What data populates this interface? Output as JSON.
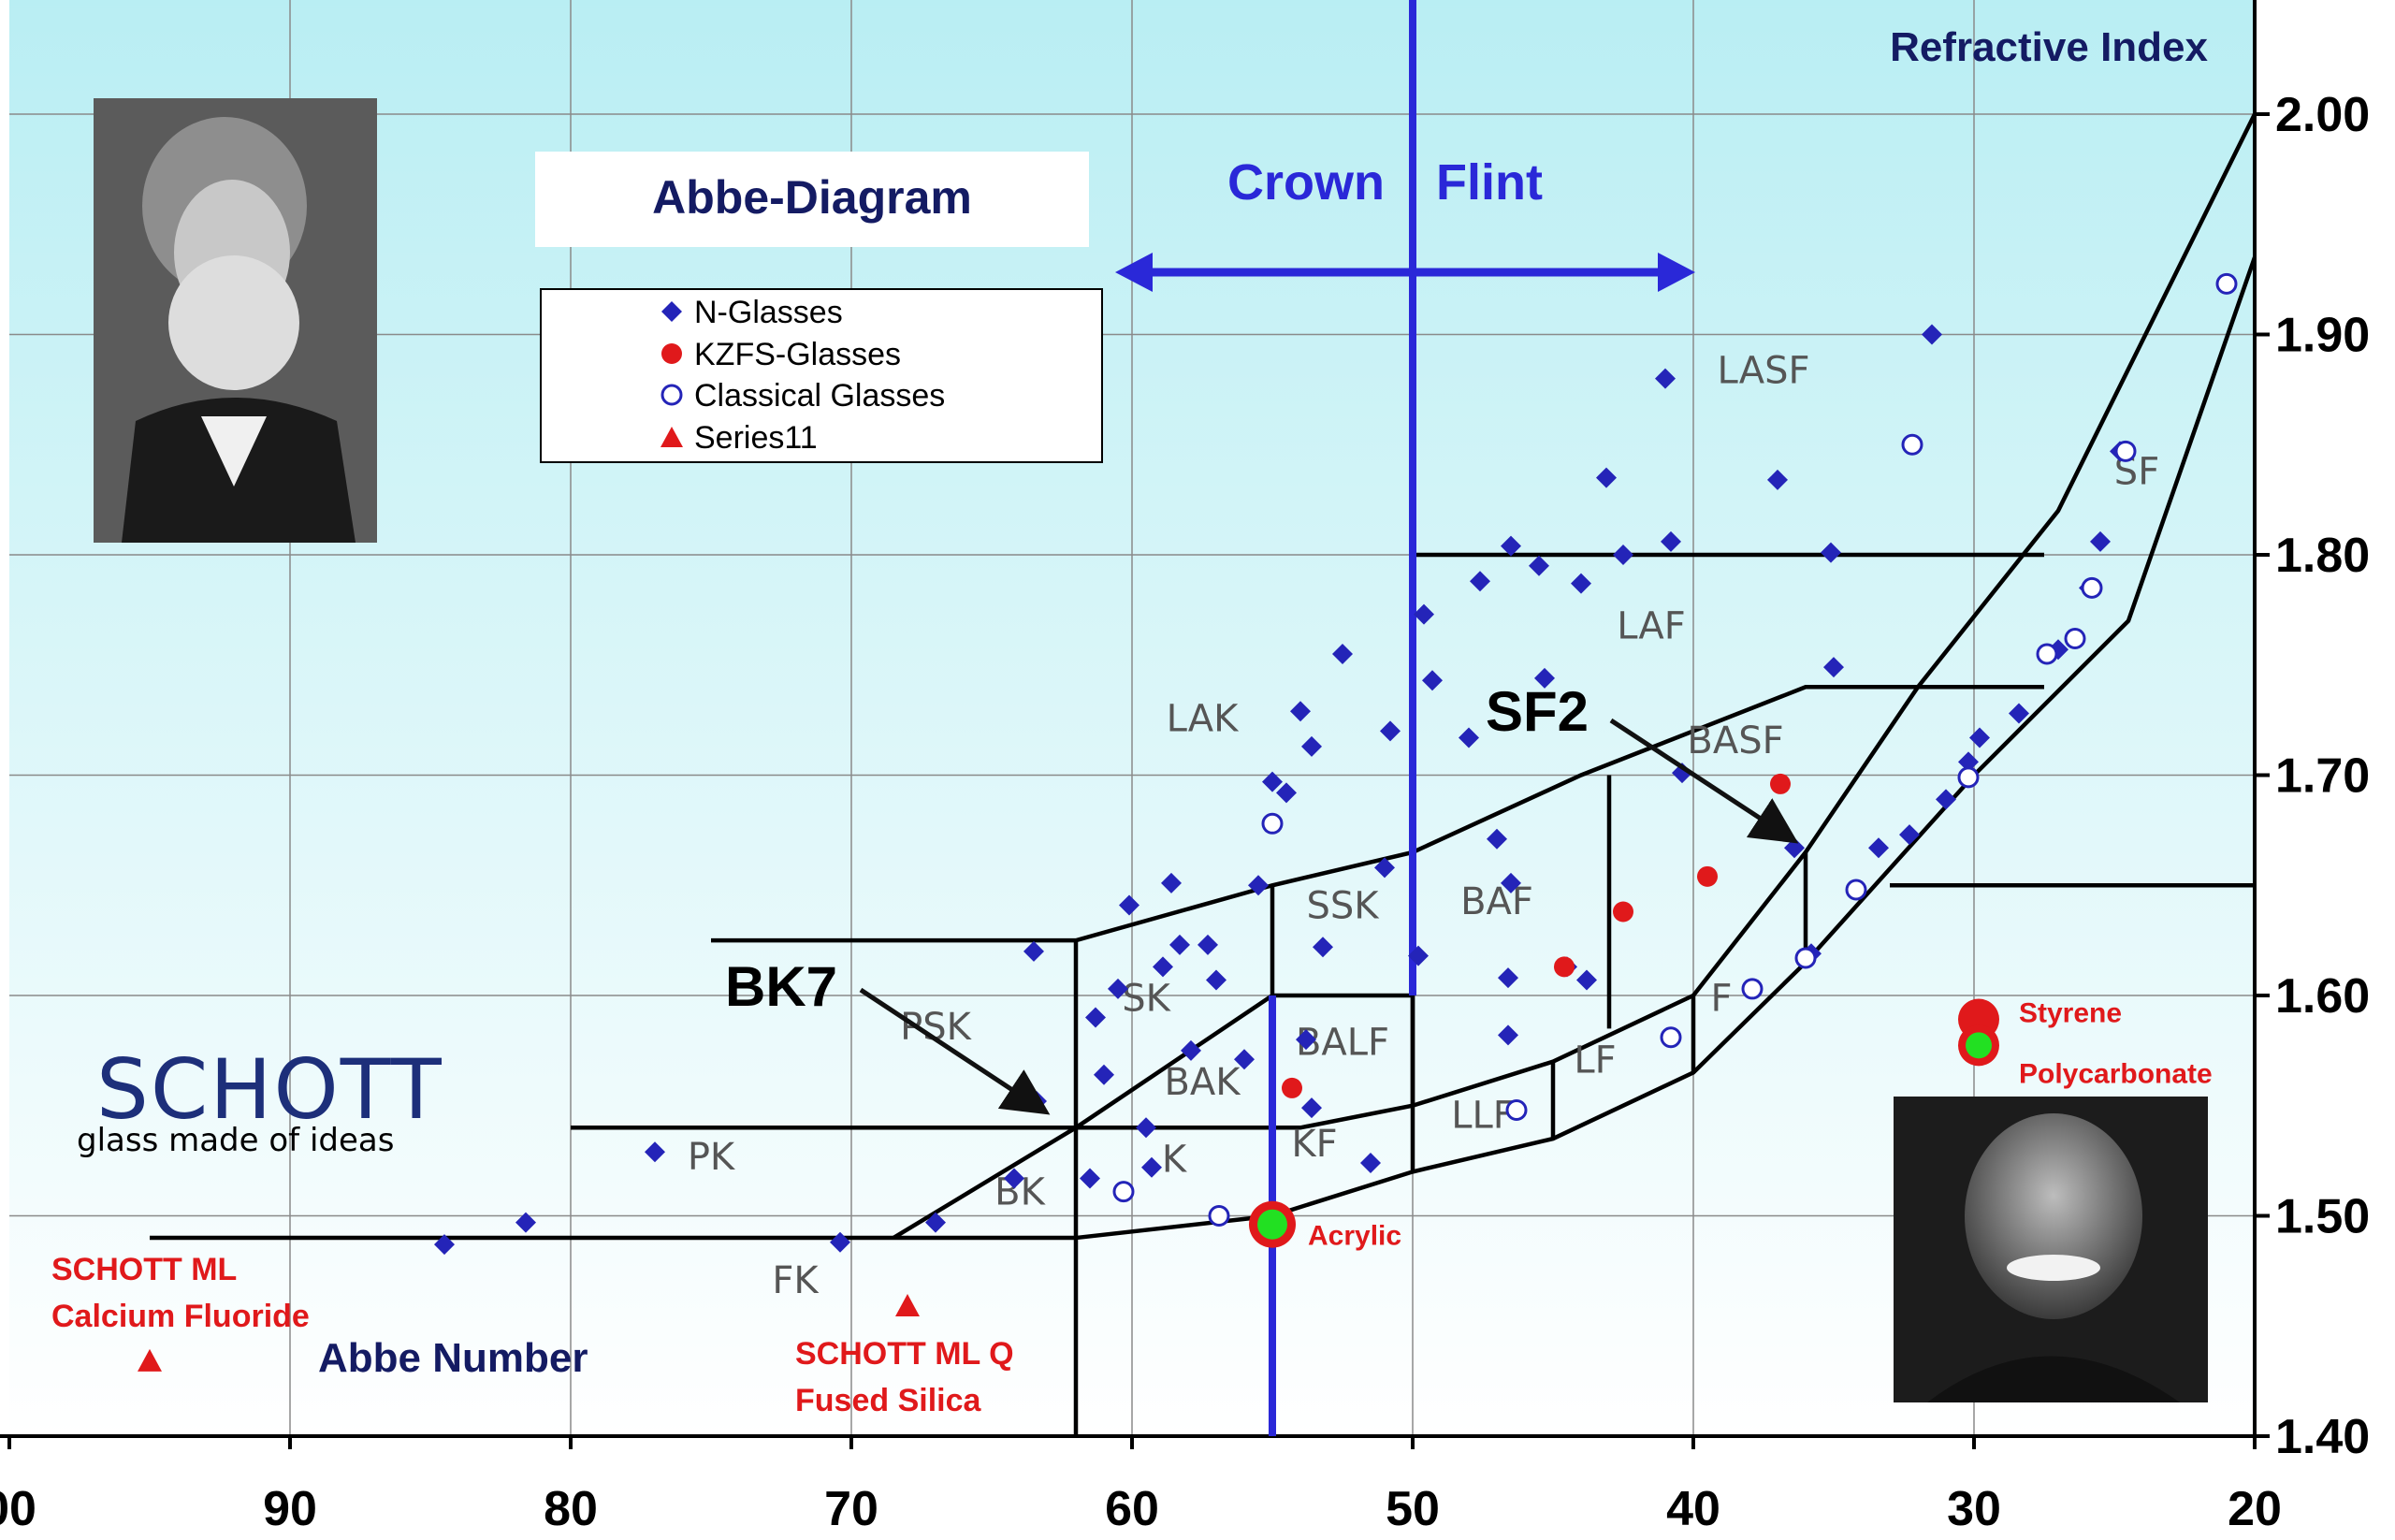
{
  "chart_data": {
    "type": "scatter",
    "title": "Abbe-Diagram",
    "xlabel": "Abbe Number",
    "ylabel": "Refractive Index",
    "xlim": [
      100,
      20
    ],
    "ylim": [
      1.4,
      2.0
    ],
    "x_ticks": [
      "00",
      "90",
      "80",
      "70",
      "60",
      "50",
      "40",
      "30",
      "20"
    ],
    "y_ticks": [
      "1.40",
      "1.50",
      "1.60",
      "1.70",
      "1.80",
      "1.90",
      "2.00"
    ],
    "grid": true,
    "legend_position": "top-left",
    "divider": {
      "x": 50,
      "left_label": "Crown",
      "right_label": "Flint"
    },
    "series": [
      {
        "name": "N-Glasses",
        "marker": "diamond",
        "color": "#2424b8",
        "points": [
          [
            84.5,
            1.487
          ],
          [
            81.6,
            1.497
          ],
          [
            77,
            1.529
          ],
          [
            70.4,
            1.488
          ],
          [
            67,
            1.497
          ],
          [
            64.2,
            1.517
          ],
          [
            63.5,
            1.62
          ],
          [
            63.4,
            1.552
          ],
          [
            61.5,
            1.517
          ],
          [
            61.3,
            1.59
          ],
          [
            61,
            1.564
          ],
          [
            60.5,
            1.603
          ],
          [
            60.1,
            1.641
          ],
          [
            59.5,
            1.54
          ],
          [
            59.3,
            1.522
          ],
          [
            58.6,
            1.651
          ],
          [
            58.9,
            1.613
          ],
          [
            58.3,
            1.623
          ],
          [
            57.9,
            1.575
          ],
          [
            57.3,
            1.623
          ],
          [
            57,
            1.607
          ],
          [
            56,
            1.571
          ],
          [
            55.5,
            1.65
          ],
          [
            55,
            1.697
          ],
          [
            54.5,
            1.692
          ],
          [
            54,
            1.729
          ],
          [
            53.6,
            1.549
          ],
          [
            53.8,
            1.58
          ],
          [
            53.2,
            1.622
          ],
          [
            53.6,
            1.713
          ],
          [
            52.5,
            1.755
          ],
          [
            51.5,
            1.524
          ],
          [
            51,
            1.658
          ],
          [
            50.8,
            1.72
          ],
          [
            49.8,
            1.618
          ],
          [
            49.6,
            1.773
          ],
          [
            49.3,
            1.743
          ],
          [
            48,
            1.717
          ],
          [
            47.6,
            1.788
          ],
          [
            47,
            1.671
          ],
          [
            46.6,
            1.582
          ],
          [
            46.6,
            1.608
          ],
          [
            46.5,
            1.804
          ],
          [
            45.5,
            1.795
          ],
          [
            46.5,
            1.651
          ],
          [
            45.3,
            1.744
          ],
          [
            44.5,
            1.613
          ],
          [
            44,
            1.787
          ],
          [
            43.8,
            1.607
          ],
          [
            43.1,
            1.835
          ],
          [
            42.5,
            1.8
          ],
          [
            41,
            1.88
          ],
          [
            40.8,
            1.806
          ],
          [
            40.4,
            1.701
          ],
          [
            37,
            1.834
          ],
          [
            35.1,
            1.801
          ],
          [
            35,
            1.749
          ],
          [
            36.4,
            1.667
          ],
          [
            35.8,
            1.619
          ],
          [
            33.4,
            1.667
          ],
          [
            32.3,
            1.673
          ],
          [
            31.5,
            1.9
          ],
          [
            31,
            1.689
          ],
          [
            30.2,
            1.706
          ],
          [
            29.8,
            1.717
          ],
          [
            28.4,
            1.728
          ],
          [
            27,
            1.757
          ],
          [
            25.9,
            1.785
          ],
          [
            25.5,
            1.806
          ],
          [
            24.8,
            1.847
          ]
        ]
      },
      {
        "name": "KZFS-Glasses",
        "marker": "circle",
        "color": "#e0191b",
        "points": [
          [
            54.3,
            1.558
          ],
          [
            44.6,
            1.613
          ],
          [
            42.5,
            1.638
          ],
          [
            39.5,
            1.654
          ],
          [
            36.9,
            1.696
          ]
        ]
      },
      {
        "name": "Classical Glasses",
        "marker": "open-circle",
        "color": "#2424b8",
        "points": [
          [
            60.3,
            1.511
          ],
          [
            56.9,
            1.5
          ],
          [
            55,
            1.678
          ],
          [
            46.3,
            1.548
          ],
          [
            40.8,
            1.581
          ],
          [
            37.9,
            1.603
          ],
          [
            36,
            1.617
          ],
          [
            34.2,
            1.648
          ],
          [
            32.2,
            1.85
          ],
          [
            30.2,
            1.699
          ],
          [
            27.4,
            1.755
          ],
          [
            26.4,
            1.762
          ],
          [
            25.8,
            1.785
          ],
          [
            24.6,
            1.847
          ],
          [
            21,
            1.923
          ]
        ]
      },
      {
        "name": "Series11",
        "marker": "triangle",
        "color": "#e0191b",
        "points": [
          [
            95,
            1.434
          ],
          [
            68,
            1.459
          ]
        ]
      }
    ],
    "highlights": [
      {
        "label": "Acrylic",
        "x": 55,
        "y": 1.491
      },
      {
        "label": "Styrene",
        "x": 30,
        "y": 1.59
      },
      {
        "label": "Polycarbonate",
        "x": 30,
        "y": 1.585
      }
    ],
    "region_labels": [
      "FK",
      "PK",
      "PSK",
      "BK",
      "K",
      "SK",
      "BAK",
      "BALF",
      "SSK",
      "LAK",
      "KF",
      "LLF",
      "LF",
      "F",
      "BAF",
      "BASF",
      "LAF",
      "LASF",
      "SF"
    ],
    "annotations": [
      "BK7",
      "SF2",
      "SCHOTT ML",
      "Calcium Fluoride",
      "SCHOTT ML Q",
      "Fused Silica"
    ]
  },
  "logo": {
    "name": "SCHOTT",
    "tagline": "glass made of ideas"
  }
}
